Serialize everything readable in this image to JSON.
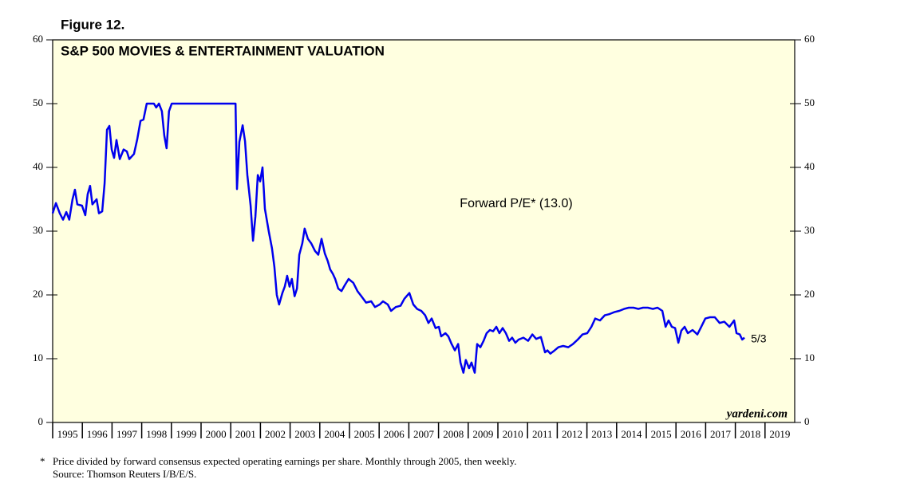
{
  "chart_data": {
    "type": "line",
    "figure_label": "Figure 12.",
    "title": "S&P 500 MOVIES & ENTERTAINMENT VALUATION",
    "series_label": "Forward P/E* (13.0)",
    "end_label": "5/3",
    "source_brand": "yardeni.com",
    "footnote_marker": "*",
    "footnote": "Price divided by forward consensus expected operating earnings per share. Monthly through 2005, then weekly.",
    "source": "Source: Thomson Reuters I/B/E/S.",
    "color": "#0000ee",
    "plot_background": "#ffffe0",
    "xlim": [
      1995,
      2020
    ],
    "xticks": [
      1995,
      1996,
      1997,
      1998,
      1999,
      2000,
      2001,
      2002,
      2003,
      2004,
      2005,
      2006,
      2007,
      2008,
      2009,
      2010,
      2011,
      2012,
      2013,
      2014,
      2015,
      2016,
      2017,
      2018,
      2019
    ],
    "ylim": [
      0,
      60
    ],
    "yticks": [
      0,
      10,
      20,
      30,
      40,
      50,
      60
    ],
    "y2lim": [
      0,
      60
    ],
    "y2ticks": [
      0,
      10,
      20,
      30,
      40,
      50,
      60
    ],
    "x": [
      1995.0,
      1995.11,
      1995.24,
      1995.35,
      1995.46,
      1995.56,
      1995.67,
      1995.75,
      1995.83,
      1995.99,
      1996.1,
      1996.18,
      1996.26,
      1996.34,
      1996.48,
      1996.56,
      1996.67,
      1996.75,
      1996.83,
      1996.91,
      1996.99,
      1997.07,
      1997.15,
      1997.26,
      1997.39,
      1997.5,
      1997.58,
      1997.74,
      1997.85,
      1997.96,
      1998.06,
      1998.17,
      1998.41,
      1998.49,
      1998.58,
      1998.68,
      1998.76,
      1998.84,
      1998.92,
      1999.01,
      2001.16,
      2001.21,
      2001.29,
      2001.4,
      2001.48,
      2001.56,
      2001.67,
      2001.75,
      2001.83,
      2001.91,
      2001.99,
      2002.07,
      2002.15,
      2002.28,
      2002.39,
      2002.47,
      2002.55,
      2002.63,
      2002.74,
      2002.82,
      2002.9,
      2002.98,
      2003.06,
      2003.15,
      2003.23,
      2003.31,
      2003.41,
      2003.49,
      2003.6,
      2003.71,
      2003.84,
      2003.95,
      2004.06,
      2004.17,
      2004.27,
      2004.35,
      2004.44,
      2004.52,
      2004.62,
      2004.73,
      2004.84,
      2004.97,
      2005.13,
      2005.27,
      2005.4,
      2005.56,
      2005.73,
      2005.86,
      2006.02,
      2006.13,
      2006.29,
      2006.4,
      2006.56,
      2006.72,
      2006.85,
      2007.02,
      2007.15,
      2007.28,
      2007.42,
      2007.55,
      2007.66,
      2007.77,
      2007.9,
      2008.01,
      2008.09,
      2008.23,
      2008.33,
      2008.44,
      2008.55,
      2008.66,
      2008.74,
      2008.84,
      2008.92,
      2009.03,
      2009.11,
      2009.22,
      2009.3,
      2009.41,
      2009.52,
      2009.62,
      2009.73,
      2009.84,
      2009.95,
      2010.05,
      2010.16,
      2010.27,
      2010.38,
      2010.48,
      2010.59,
      2010.7,
      2010.86,
      2011.02,
      2011.16,
      2011.29,
      2011.45,
      2011.59,
      2011.67,
      2011.77,
      2011.91,
      2012.04,
      2012.2,
      2012.37,
      2012.53,
      2012.69,
      2012.85,
      2013.01,
      2013.15,
      2013.28,
      2013.44,
      2013.6,
      2013.76,
      2013.92,
      2014.09,
      2014.25,
      2014.41,
      2014.57,
      2014.73,
      2014.89,
      2015.05,
      2015.22,
      2015.38,
      2015.54,
      2015.65,
      2015.75,
      2015.86,
      2015.97,
      2016.08,
      2016.18,
      2016.29,
      2016.4,
      2016.56,
      2016.72,
      2016.83,
      2016.99,
      2017.15,
      2017.31,
      2017.47,
      2017.63,
      2017.8,
      2017.96,
      2018.04,
      2018.15,
      2018.23,
      2018.31
    ],
    "values": [
      32.8,
      34.4,
      32.8,
      31.8,
      33,
      31.8,
      35,
      36.5,
      34.2,
      34,
      32.5,
      35.8,
      37.1,
      34.2,
      35,
      32.8,
      33.1,
      37.5,
      45.9,
      46.5,
      42.8,
      41.5,
      44.3,
      41.3,
      42.8,
      42.5,
      41.3,
      42.1,
      44.4,
      47.3,
      47.5,
      50,
      50,
      49.4,
      50,
      48.8,
      45,
      43,
      48.8,
      50,
      50,
      36.6,
      44,
      46.6,
      44.1,
      38.8,
      34,
      28.5,
      32.3,
      38.8,
      37.8,
      40,
      33.5,
      30,
      27.3,
      24.4,
      20,
      18.5,
      20.3,
      21.3,
      23,
      21.3,
      22.5,
      19.8,
      21,
      26.3,
      28.1,
      30.4,
      28.8,
      28.1,
      26.9,
      26.3,
      28.8,
      26.5,
      25.3,
      24,
      23.3,
      22.5,
      21,
      20.6,
      21.5,
      22.5,
      21.9,
      20.6,
      19.8,
      18.8,
      19,
      18.1,
      18.5,
      19,
      18.5,
      17.5,
      18.1,
      18.3,
      19.4,
      20.3,
      18.5,
      17.8,
      17.5,
      16.8,
      15.6,
      16.3,
      14.8,
      15,
      13.5,
      14,
      13.5,
      12.3,
      11.3,
      12.3,
      9.4,
      7.8,
      9.8,
      8.5,
      9.4,
      7.8,
      12.3,
      11.8,
      12.8,
      14,
      14.5,
      14.3,
      15,
      14,
      14.8,
      14,
      12.8,
      13.3,
      12.5,
      13,
      13.3,
      12.8,
      13.8,
      13.1,
      13.4,
      11,
      11.3,
      10.8,
      11.3,
      11.8,
      12,
      11.8,
      12.3,
      13,
      13.8,
      14,
      15,
      16.3,
      16,
      16.8,
      17,
      17.3,
      17.5,
      17.8,
      18,
      18,
      17.8,
      18,
      18,
      17.8,
      18,
      17.5,
      15,
      16,
      15,
      14.8,
      12.5,
      14.4,
      15,
      14,
      14.5,
      13.8,
      14.8,
      16.3,
      16.5,
      16.5,
      15.6,
      15.8,
      15,
      16,
      14,
      13.8,
      13,
      13.3
    ]
  }
}
